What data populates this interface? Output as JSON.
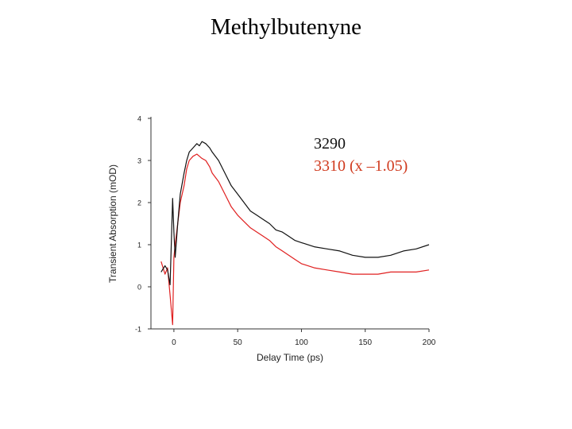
{
  "slide": {
    "title": "Methylbutenyne"
  },
  "colors": {
    "series_3290": "#111111",
    "series_3310": "#e02020",
    "axis": "#333333"
  },
  "chart_data": {
    "type": "line",
    "title": "",
    "xlabel": "Delay Time (ps)",
    "ylabel": "Transient Absorption (mOD)",
    "xlim": [
      -18,
      200
    ],
    "ylim": [
      -1,
      4
    ],
    "xticks": [
      0,
      50,
      100,
      150,
      200
    ],
    "yticks": [
      -1,
      0,
      1,
      2,
      3,
      4
    ],
    "grid": false,
    "legend_position": "top-right",
    "series": [
      {
        "name": "3290",
        "color": "#111111",
        "x": [
          -10,
          -7,
          -5,
          -3,
          -1,
          0,
          1,
          3,
          5,
          8,
          10,
          12,
          15,
          18,
          20,
          22,
          25,
          28,
          30,
          35,
          40,
          45,
          50,
          55,
          60,
          65,
          70,
          75,
          80,
          85,
          90,
          95,
          100,
          110,
          120,
          130,
          140,
          150,
          160,
          170,
          180,
          190,
          200
        ],
        "y": [
          0.35,
          0.5,
          0.4,
          0.05,
          2.1,
          1.3,
          0.7,
          1.5,
          2.2,
          2.7,
          3.0,
          3.2,
          3.3,
          3.4,
          3.35,
          3.45,
          3.4,
          3.3,
          3.2,
          3.0,
          2.7,
          2.4,
          2.2,
          2.0,
          1.8,
          1.7,
          1.6,
          1.5,
          1.35,
          1.3,
          1.2,
          1.1,
          1.05,
          0.95,
          0.9,
          0.85,
          0.75,
          0.7,
          0.7,
          0.75,
          0.85,
          0.9,
          1.0
        ]
      },
      {
        "name": "3310 (x –1.05)",
        "color": "#e02020",
        "x": [
          -10,
          -7,
          -5,
          -3,
          -1,
          0,
          1,
          3,
          5,
          8,
          10,
          12,
          15,
          18,
          20,
          22,
          25,
          28,
          30,
          35,
          40,
          45,
          50,
          55,
          60,
          65,
          70,
          75,
          80,
          85,
          90,
          95,
          100,
          110,
          120,
          130,
          140,
          150,
          160,
          170,
          180,
          190,
          200
        ],
        "y": [
          0.6,
          0.3,
          0.45,
          -0.2,
          -0.9,
          0.7,
          1.0,
          1.5,
          2.0,
          2.4,
          2.8,
          3.0,
          3.1,
          3.15,
          3.1,
          3.05,
          3.0,
          2.85,
          2.7,
          2.5,
          2.2,
          1.9,
          1.7,
          1.55,
          1.4,
          1.3,
          1.2,
          1.1,
          0.95,
          0.85,
          0.75,
          0.65,
          0.55,
          0.45,
          0.4,
          0.35,
          0.3,
          0.3,
          0.3,
          0.35,
          0.35,
          0.35,
          0.4
        ]
      }
    ],
    "legend": [
      {
        "label": "3290",
        "color": "#111111"
      },
      {
        "label": "3310 (x –1.05)",
        "color": "#d03a1e"
      }
    ]
  }
}
